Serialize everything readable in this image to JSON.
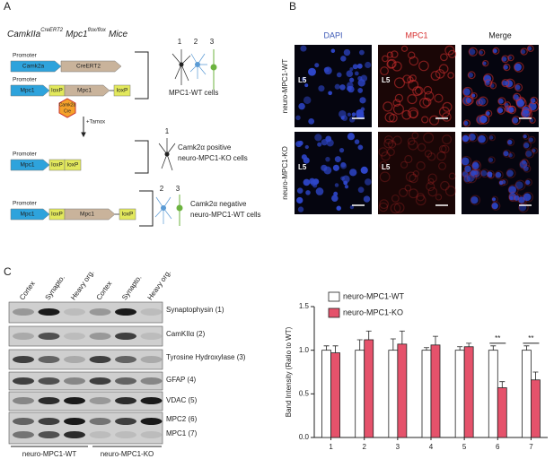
{
  "panel_a": {
    "label": "A",
    "title": {
      "gene1": "CamkIIa",
      "sup1": "CreERT2",
      "gene2": "Mpc1",
      "sup2": "flox/flox",
      "suffix": "Mice"
    },
    "constructs": [
      {
        "promoter": "Promoter",
        "parts": [
          "Camk2a",
          "CreERT2"
        ]
      },
      {
        "promoter": "Promoter",
        "parts": [
          "Mpc1",
          "loxP",
          "Mpc1",
          "loxP"
        ]
      },
      {
        "promoter": "Promoter",
        "parts": [
          "Mpc1",
          "loxP",
          "loxP"
        ]
      },
      {
        "promoter": "Promoter",
        "parts": [
          "Mpc1",
          "loxP",
          "Mpc1",
          "loxP"
        ]
      }
    ],
    "cre": [
      "Camk2a",
      "Cre"
    ],
    "tamox": "+Tamox",
    "groups": [
      {
        "numbers": [
          "1",
          "2",
          "3"
        ],
        "label": [
          "MPC1-WT cells"
        ]
      },
      {
        "numbers": [
          "1"
        ],
        "label": [
          "Camk2α positive",
          "neuro-MPC1-KO cells"
        ]
      },
      {
        "numbers": [
          "2",
          "3"
        ],
        "label": [
          "Camk2α negative",
          "neuro-MPC1-WT cells"
        ]
      }
    ]
  },
  "panel_b": {
    "label": "B",
    "columns": [
      "DAPI",
      "MPC1",
      "Merge"
    ],
    "rows": [
      "neuro-MPC1-WT",
      "neuro-MPC1-KO"
    ],
    "layer_labels": [
      "L5",
      "L5",
      "L5",
      "L5"
    ]
  },
  "panel_c": {
    "label": "C",
    "lanes": [
      "Cortex",
      "Synapto.",
      "Heavy org.",
      "Cortex",
      "Synapto.",
      "Heavy org."
    ],
    "blots": [
      "Synaptophysin (1)",
      "CamKIIα (2)",
      "Tyrosine Hydroxylase (3)",
      "GFAP (4)",
      "VDAC (5)",
      "MPC2 (6)",
      "MPC1 (7)"
    ],
    "groups": [
      "neuro-MPC1-WT",
      "neuro-MPC1-KO"
    ]
  },
  "chart_data": {
    "type": "bar",
    "y_label": "Band Intensity (Ratio to WT)",
    "categories": [
      "1",
      "2",
      "3",
      "4",
      "5",
      "6",
      "7"
    ],
    "series": [
      {
        "name": "neuro-MPC1-WT",
        "color": "#ffffff",
        "values": [
          1.0,
          1.0,
          1.0,
          1.0,
          1.0,
          1.0,
          1.0
        ],
        "errors": [
          0.05,
          0.12,
          0.13,
          0.03,
          0.04,
          0.05,
          0.05
        ]
      },
      {
        "name": "neuro-MPC1-KO",
        "color": "#e5526b",
        "values": [
          0.97,
          1.12,
          1.07,
          1.06,
          1.04,
          0.57,
          0.66
        ],
        "errors": [
          0.08,
          0.1,
          0.15,
          0.1,
          0.04,
          0.07,
          0.09
        ]
      }
    ],
    "ylim": [
      0,
      1.5
    ],
    "yticks": [
      {
        "value": 0,
        "label": "0.0"
      },
      {
        "value": 0.5,
        "label": "0.5"
      },
      {
        "value": 1,
        "label": "1.0"
      },
      {
        "value": 1.5,
        "label": "1.5"
      }
    ],
    "grid": false,
    "annotations": [
      {
        "text": "**",
        "category": "6"
      },
      {
        "text": "**",
        "category": "7"
      }
    ]
  }
}
